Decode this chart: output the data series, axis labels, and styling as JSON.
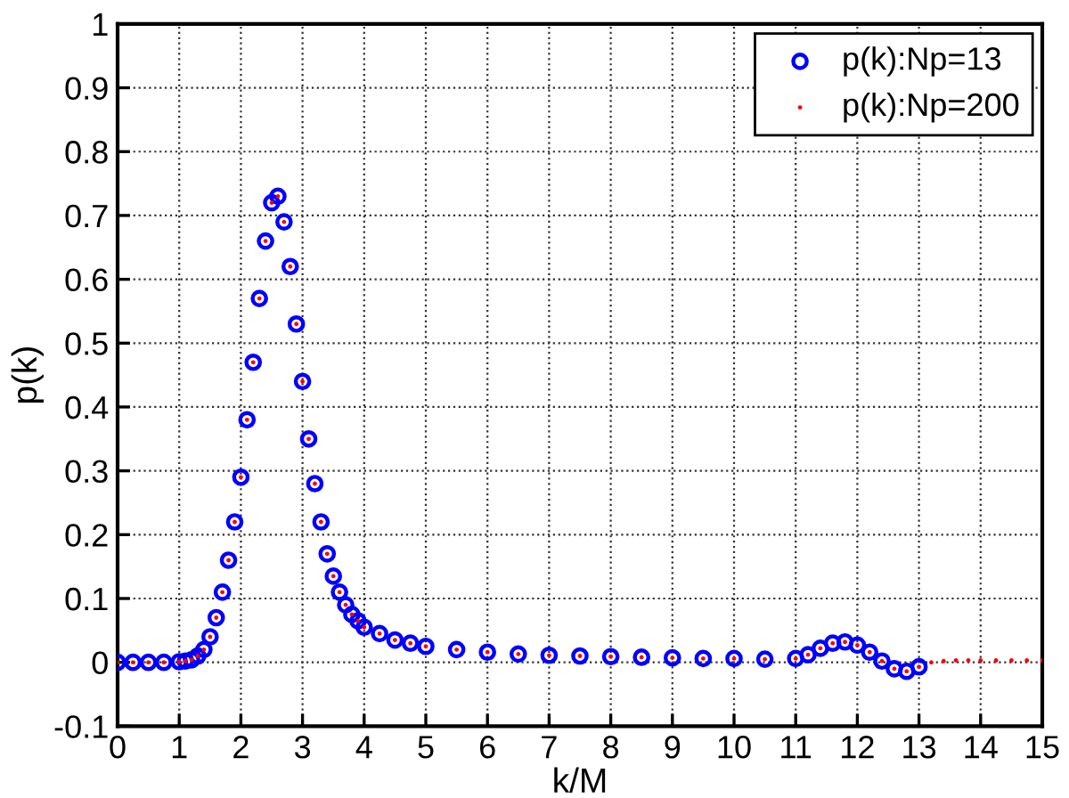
{
  "chart_data": {
    "type": "scatter",
    "xlabel": "k/M",
    "ylabel": "p(k)",
    "xlim": [
      0,
      15
    ],
    "xticks": [
      0,
      1,
      2,
      3,
      4,
      5,
      6,
      7,
      8,
      9,
      10,
      11,
      12,
      13,
      14,
      15
    ],
    "ylim": [
      -0.1,
      1
    ],
    "yticks": [
      -0.1,
      0,
      0.1,
      0.2,
      0.3,
      0.4,
      0.5,
      0.6,
      0.7,
      0.8,
      0.9,
      1
    ],
    "grid": true,
    "legend": "top right",
    "series": [
      {
        "name": "p(k):Np=13",
        "color": "#0000ff",
        "marker": "circle",
        "x": [
          0,
          0.25,
          0.5,
          0.75,
          1.0,
          1.1,
          1.2,
          1.3,
          1.4,
          1.5,
          1.6,
          1.7,
          1.8,
          1.9,
          2.0,
          2.1,
          2.2,
          2.3,
          2.4,
          2.5,
          2.6,
          2.7,
          2.8,
          2.9,
          3.0,
          3.1,
          3.2,
          3.3,
          3.4,
          3.5,
          3.6,
          3.7,
          3.8,
          3.9,
          4.0,
          4.25,
          4.5,
          4.75,
          5.0,
          5.5,
          6.0,
          6.5,
          7.0,
          7.5,
          8.0,
          8.5,
          9.0,
          9.5,
          10.0,
          10.5,
          11.0,
          11.2,
          11.4,
          11.6,
          11.8,
          12.0,
          12.2,
          12.4,
          12.6,
          12.8,
          13.0
        ],
        "values": [
          0,
          0,
          0,
          0,
          0.001,
          0.002,
          0.004,
          0.01,
          0.02,
          0.04,
          0.07,
          0.11,
          0.16,
          0.22,
          0.29,
          0.38,
          0.47,
          0.57,
          0.66,
          0.72,
          0.73,
          0.69,
          0.62,
          0.53,
          0.44,
          0.35,
          0.28,
          0.22,
          0.17,
          0.135,
          0.11,
          0.09,
          0.075,
          0.065,
          0.055,
          0.045,
          0.035,
          0.03,
          0.025,
          0.02,
          0.016,
          0.013,
          0.011,
          0.01,
          0.009,
          0.008,
          0.007,
          0.006,
          0.006,
          0.005,
          0.006,
          0.012,
          0.022,
          0.03,
          0.032,
          0.027,
          0.016,
          0.002,
          -0.01,
          -0.014,
          -0.007
        ]
      },
      {
        "name": "p(k):Np=200",
        "color": "#ff0000",
        "marker": "point",
        "x": [
          0,
          0.25,
          0.5,
          0.75,
          1.0,
          1.1,
          1.2,
          1.3,
          1.4,
          1.5,
          1.6,
          1.7,
          1.8,
          1.9,
          2.0,
          2.1,
          2.2,
          2.3,
          2.4,
          2.5,
          2.6,
          2.7,
          2.8,
          2.9,
          3.0,
          3.1,
          3.2,
          3.3,
          3.4,
          3.5,
          3.6,
          3.7,
          3.8,
          3.9,
          4.0,
          4.25,
          4.5,
          4.75,
          5.0,
          5.5,
          6.0,
          6.5,
          7.0,
          7.5,
          8.0,
          8.5,
          9.0,
          9.5,
          10.0,
          10.5,
          11.0,
          11.2,
          11.4,
          11.6,
          11.8,
          12.0,
          12.2,
          12.4,
          12.6,
          12.8,
          13.0,
          13.2,
          13.4,
          13.6,
          13.8,
          14.0,
          14.25,
          14.5,
          14.75,
          15.0
        ],
        "values": [
          0,
          0,
          0,
          0,
          0.001,
          0.002,
          0.004,
          0.01,
          0.02,
          0.04,
          0.07,
          0.11,
          0.16,
          0.22,
          0.29,
          0.38,
          0.47,
          0.57,
          0.66,
          0.72,
          0.73,
          0.69,
          0.62,
          0.53,
          0.44,
          0.35,
          0.28,
          0.22,
          0.17,
          0.135,
          0.11,
          0.09,
          0.075,
          0.065,
          0.055,
          0.045,
          0.035,
          0.03,
          0.025,
          0.02,
          0.016,
          0.013,
          0.011,
          0.01,
          0.009,
          0.008,
          0.007,
          0.006,
          0.006,
          0.005,
          0.006,
          0.012,
          0.022,
          0.03,
          0.032,
          0.027,
          0.016,
          0.002,
          -0.01,
          -0.014,
          -0.007,
          0.0,
          0.002,
          0.003,
          0.003,
          0.003,
          0.003,
          0.003,
          0.003,
          0.003
        ]
      }
    ]
  }
}
